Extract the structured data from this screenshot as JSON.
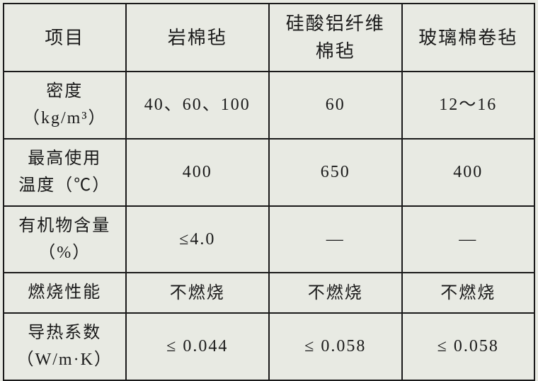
{
  "table": {
    "columns": [
      "项目",
      "岩棉毡",
      "硅酸铝纤维\n棉毡",
      "玻璃棉卷毡"
    ],
    "rows": [
      {
        "label": "密度\n（kg/m³）",
        "cells": [
          "40、60、100",
          "60",
          "12～16"
        ]
      },
      {
        "label": "最高使用\n温度（℃）",
        "cells": [
          "400",
          "650",
          "400"
        ]
      },
      {
        "label": "有机物含量\n（%）",
        "cells": [
          "≤4.0",
          "—",
          "—"
        ]
      },
      {
        "label": "燃烧性能",
        "cells": [
          "不燃烧",
          "不燃烧",
          "不燃烧"
        ]
      },
      {
        "label": "导热系数\n（W/m·K）",
        "cells": [
          "≤ 0.044",
          "≤ 0.058",
          "≤ 0.058"
        ]
      }
    ],
    "column_widths": [
      "23%",
      "27%",
      "25%",
      "25%"
    ],
    "border_color": "#1a1a1a",
    "background_color": "#e8eae3",
    "text_color": "#1a1a1a",
    "header_fontsize": 26,
    "cell_fontsize": 24
  }
}
